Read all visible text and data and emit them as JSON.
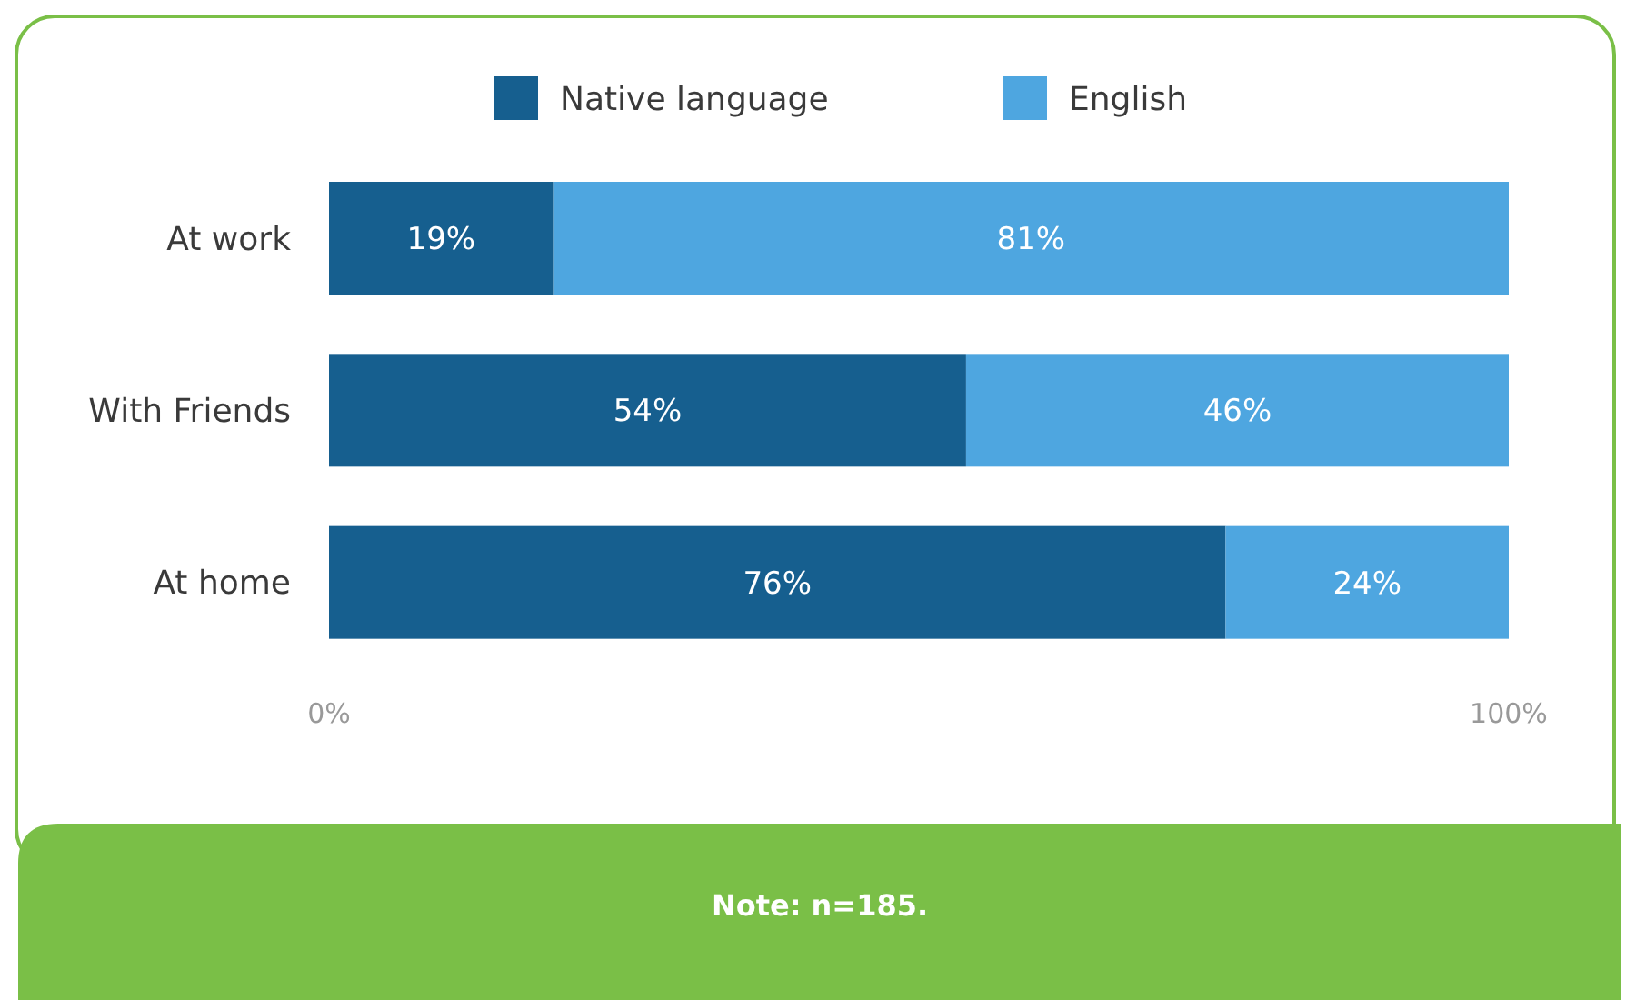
{
  "chart_data": {
    "type": "bar",
    "orientation": "horizontal",
    "stacked": true,
    "categories": [
      "At work",
      "With Friends",
      "At home"
    ],
    "series": [
      {
        "name": "Native language",
        "color": "#165f8f",
        "values": [
          19,
          54,
          76
        ],
        "value_labels": [
          "19%",
          "54%",
          "76%"
        ]
      },
      {
        "name": "English",
        "color": "#4ea6e0",
        "values": [
          81,
          46,
          24
        ],
        "value_labels": [
          "81%",
          "46%",
          "24%"
        ]
      }
    ],
    "xlim": [
      0,
      100
    ],
    "xticks": [
      {
        "value": 0,
        "label": "0%"
      },
      {
        "value": 100,
        "label": "100%"
      }
    ],
    "grid": false,
    "legend": "top",
    "annotations": [
      "Note: n=185."
    ]
  }
}
